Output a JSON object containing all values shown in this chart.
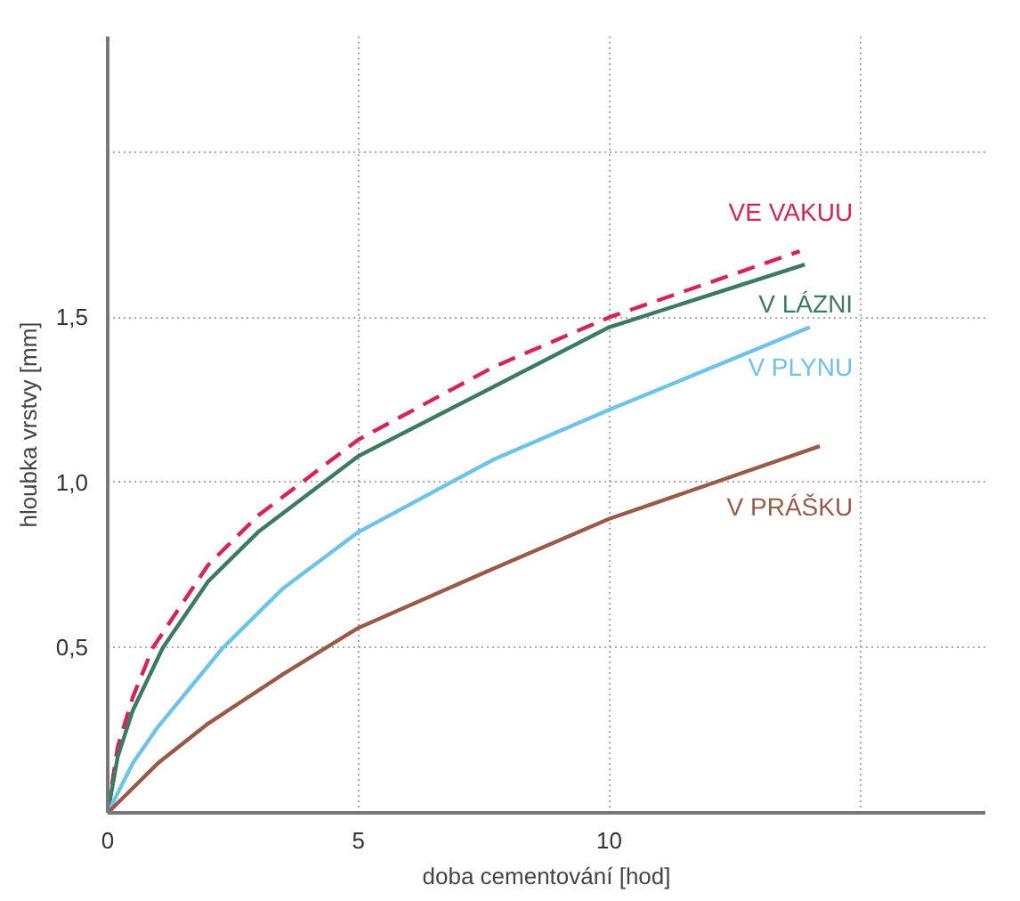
{
  "chart_data": {
    "type": "line",
    "xlabel": "doba cementování [hod]",
    "ylabel": "hloubka vrstvy [mm]",
    "xlim": [
      0,
      17.5
    ],
    "ylim": [
      0,
      2.35
    ],
    "xticks": [
      0,
      5,
      10,
      {
        "value": 15,
        "label": null
      }
    ],
    "yticks": [
      {
        "value": 0.5,
        "label": "0,5"
      },
      {
        "value": 1.0,
        "label": "1,0"
      },
      {
        "value": 1.5,
        "label": "1,5"
      },
      {
        "value": 2.0,
        "label": null
      }
    ],
    "grid": true,
    "series": [
      {
        "name": "VE VAKUU",
        "color": "#d6245a",
        "line_style": "dashed",
        "x": [
          0,
          0.2,
          0.5,
          0.9,
          2,
          3,
          5,
          7.7,
          10,
          13.8
        ],
        "values": [
          0,
          0.2,
          0.35,
          0.5,
          0.75,
          0.9,
          1.13,
          1.35,
          1.5,
          1.7
        ]
      },
      {
        "name": "V LÁZNI",
        "color": "#3d7a62",
        "line_style": "solid",
        "x": [
          0,
          0.2,
          0.5,
          1.1,
          2,
          3,
          5,
          7.7,
          10,
          13.9
        ],
        "values": [
          0,
          0.17,
          0.31,
          0.5,
          0.7,
          0.85,
          1.08,
          1.29,
          1.47,
          1.66
        ]
      },
      {
        "name": "V PLYNU",
        "color": "#6ec3e8",
        "line_style": "solid",
        "x": [
          0,
          0.5,
          1,
          2.3,
          3.5,
          5,
          7.7,
          10,
          14
        ],
        "values": [
          0,
          0.15,
          0.26,
          0.5,
          0.68,
          0.85,
          1.07,
          1.22,
          1.47
        ]
      },
      {
        "name": "V PRÁŠKU",
        "color": "#9a5a48",
        "line_style": "solid",
        "x": [
          0,
          1,
          2,
          3.5,
          5,
          7.7,
          10,
          14.2
        ],
        "values": [
          0,
          0.15,
          0.27,
          0.42,
          0.56,
          0.74,
          0.89,
          1.11
        ]
      }
    ]
  }
}
